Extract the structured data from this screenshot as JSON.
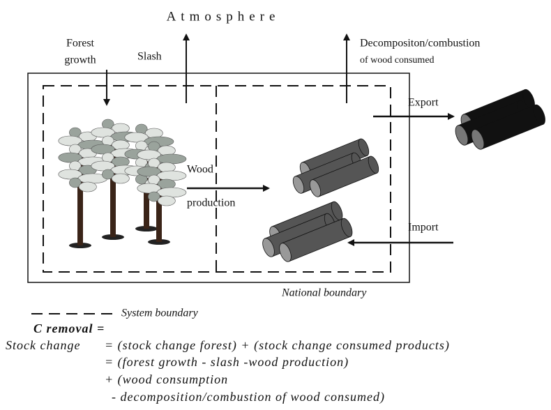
{
  "title": "Atmosphere",
  "flows": {
    "forest_growth": [
      "Forest",
      "growth"
    ],
    "slash": "Slash",
    "decomposition": [
      "Decompositon/combustion",
      "of wood consumed"
    ],
    "wood_production": [
      "Wood",
      "production"
    ],
    "export": "Export",
    "import": "Import"
  },
  "national_boundary": "National boundary",
  "legend": "System boundary",
  "formula": {
    "heading": "C removal =",
    "lhs": "Stock change",
    "lines": [
      "= (stock change forest) + (stock change consumed products)",
      "= (forest growth - slash -wood production)",
      "+ (wood consumption",
      "- decomposition/combustion of wood consumed)"
    ]
  }
}
